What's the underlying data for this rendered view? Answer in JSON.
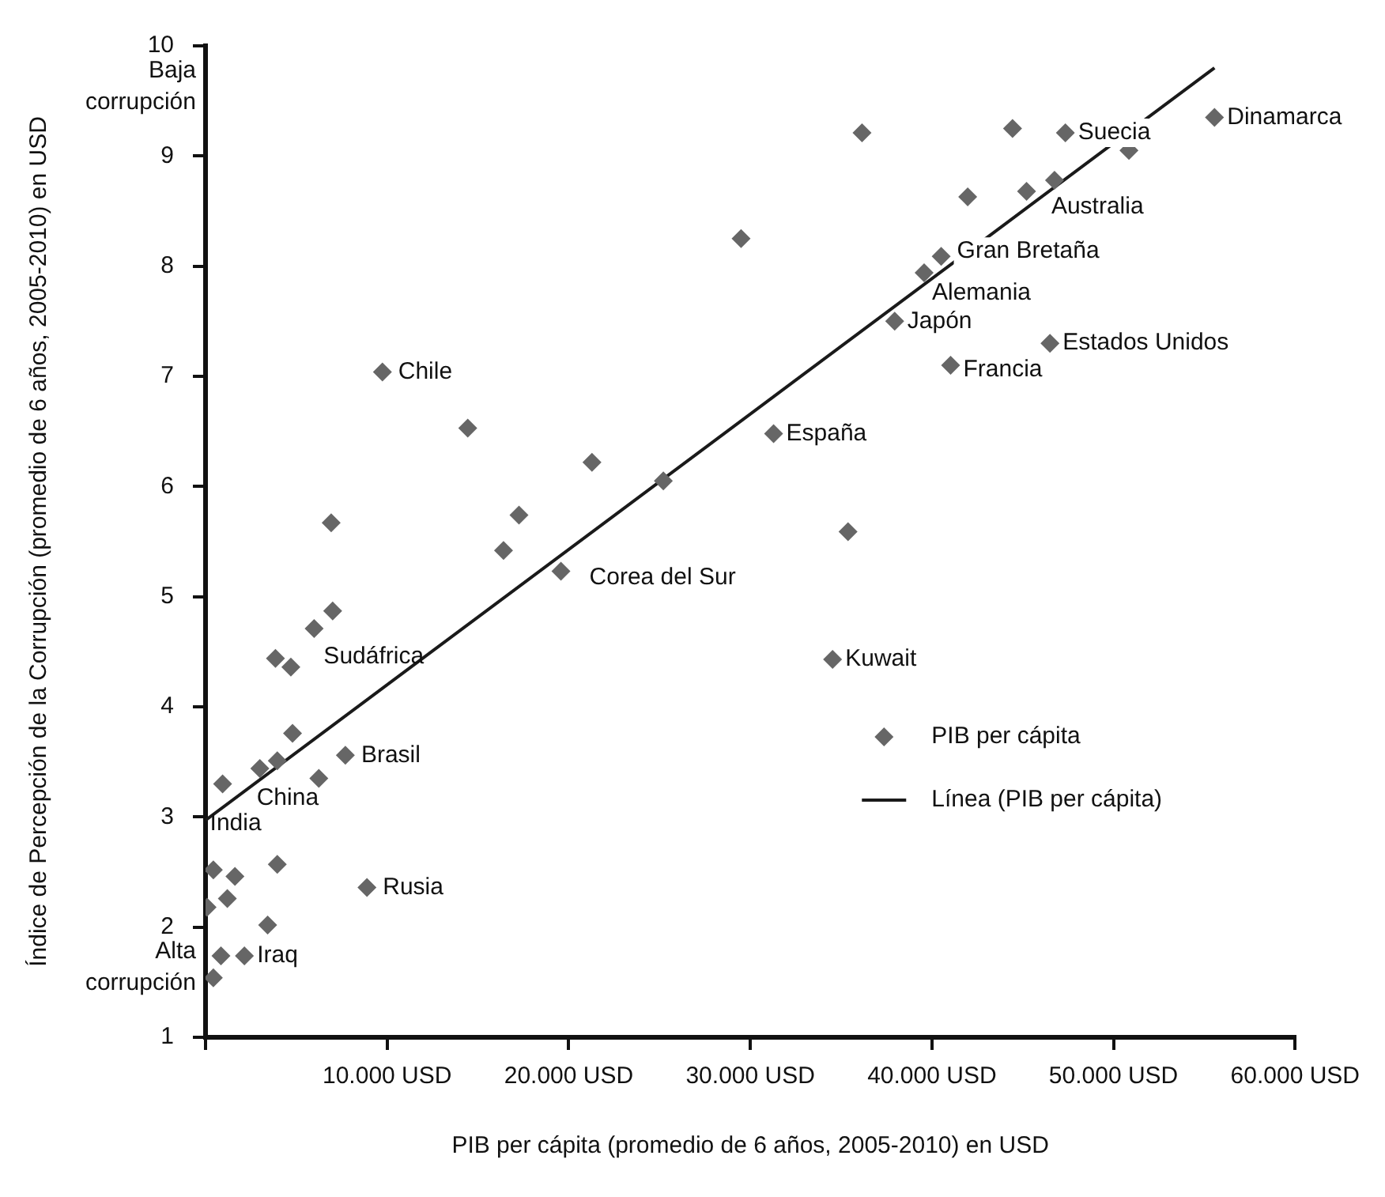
{
  "chart_data": {
    "type": "scatter",
    "xlabel": "PIB per cápita (promedio de 6 años, 2005-2010) en USD",
    "ylabel": "Índice de Percepción de la Corrupción (promedio de 6 años, 2005-2010) en USD",
    "xlim": [
      0,
      60000
    ],
    "ylim": [
      1,
      10
    ],
    "xticks": [
      {
        "value": 0,
        "label": null
      },
      {
        "value": 10000,
        "label": "10.000 USD"
      },
      {
        "value": 20000,
        "label": "20.000 USD"
      },
      {
        "value": 30000,
        "label": "30.000 USD"
      },
      {
        "value": 40000,
        "label": "40.000 USD"
      },
      {
        "value": 50000,
        "label": "50.000 USD"
      },
      {
        "value": 60000,
        "label": "60.000 USD"
      }
    ],
    "yticks": [
      1,
      2,
      3,
      4,
      5,
      6,
      7,
      8,
      9,
      10
    ],
    "grid": false,
    "legend": "bottom right",
    "series": [
      {
        "name": "PIB per cápita",
        "type": "scatter",
        "marker": "diamond",
        "color": "#666666",
        "x": [
          7000,
          5980,
          3850,
          4700,
          4790,
          7700,
          3950,
          2990,
          940,
          6240,
          430,
          1620,
          3950,
          1200,
          85,
          8890,
          3420,
          850,
          2140,
          430,
          9740,
          14440,
          21280,
          25210,
          17260,
          16410,
          19570,
          6920,
          29490,
          36150,
          35380,
          31280,
          37950,
          44440,
          47350,
          55560,
          50850,
          41970,
          45210,
          46750,
          40510,
          39570,
          46500,
          41030,
          34530
        ],
        "values": [
          4.87,
          4.71,
          4.44,
          4.36,
          3.76,
          3.56,
          3.51,
          3.44,
          3.3,
          3.35,
          2.52,
          2.46,
          2.57,
          2.26,
          2.18,
          2.36,
          2.02,
          1.74,
          1.74,
          1.54,
          7.04,
          6.53,
          6.22,
          6.05,
          5.74,
          5.42,
          5.23,
          5.67,
          8.25,
          9.21,
          5.59,
          6.48,
          7.5,
          9.25,
          9.21,
          9.35,
          9.05,
          8.63,
          8.68,
          8.78,
          8.09,
          7.94,
          7.3,
          7.1,
          4.43
        ]
      },
      {
        "name": "Línea (PIB per cápita)",
        "type": "line",
        "marker": "none",
        "line_style": "solid",
        "color": "#1a1a1a",
        "x": [
          0,
          55560
        ],
        "values": [
          2.97,
          9.8
        ]
      }
    ],
    "annotations": [
      {
        "text": "Dinamarca",
        "x": 55560,
        "y": 9.35
      },
      {
        "text": "Suecia",
        "x": 47350,
        "y": 9.21
      },
      {
        "text": "Australia",
        "x": 46750,
        "y": 8.78
      },
      {
        "text": "Gran Bretaña",
        "x": 40510,
        "y": 8.09
      },
      {
        "text": "Alemania",
        "x": 39570,
        "y": 7.94
      },
      {
        "text": "Japón",
        "x": 37950,
        "y": 7.5
      },
      {
        "text": "Estados Unidos",
        "x": 46500,
        "y": 7.3
      },
      {
        "text": "Francia",
        "x": 41030,
        "y": 7.1
      },
      {
        "text": "España",
        "x": 31280,
        "y": 6.48
      },
      {
        "text": "Kuwait",
        "x": 34530,
        "y": 4.43
      },
      {
        "text": "Corea del Sur",
        "x": 19570,
        "y": 5.23
      },
      {
        "text": "Chile",
        "x": 9740,
        "y": 7.04
      },
      {
        "text": "Sudáfrica",
        "x": 5980,
        "y": 4.71
      },
      {
        "text": "Brasil",
        "x": 7700,
        "y": 3.56
      },
      {
        "text": "China",
        "x": 2990,
        "y": 3.44
      },
      {
        "text": "India",
        "x": 940,
        "y": 3.3
      },
      {
        "text": "Rusia",
        "x": 8890,
        "y": 2.36
      },
      {
        "text": "Iraq",
        "x": 2140,
        "y": 1.74
      },
      "Baja corrupción",
      "Alta corrupción"
    ]
  }
}
